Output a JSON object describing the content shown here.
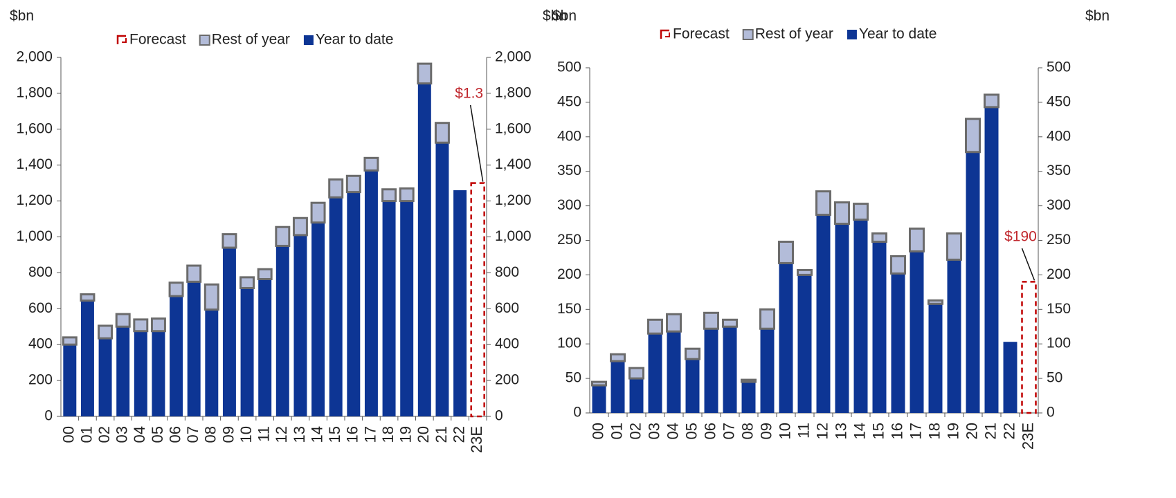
{
  "chart_data": [
    {
      "type": "bar",
      "stacked": true,
      "y_label": "$bn",
      "y2_label": "$bn",
      "categories": [
        "00",
        "01",
        "02",
        "03",
        "04",
        "05",
        "06",
        "07",
        "08",
        "09",
        "10",
        "11",
        "12",
        "13",
        "14",
        "15",
        "16",
        "17",
        "18",
        "19",
        "20",
        "21",
        "22",
        "23E"
      ],
      "series": [
        {
          "name": "Year to date",
          "color": "#0d3594",
          "values": [
            400,
            645,
            435,
            500,
            475,
            475,
            670,
            750,
            595,
            940,
            715,
            765,
            950,
            1010,
            1080,
            1220,
            1250,
            1370,
            1200,
            1200,
            1855,
            1525,
            1260,
            null
          ]
        },
        {
          "name": "Rest of year",
          "color": "#b3bcd9",
          "values": [
            40,
            35,
            70,
            70,
            65,
            70,
            75,
            90,
            140,
            75,
            60,
            55,
            105,
            95,
            110,
            100,
            90,
            70,
            65,
            70,
            110,
            110,
            null,
            null
          ]
        },
        {
          "name": "Forecast",
          "color": "#c00000",
          "style": "dashed",
          "values": [
            null,
            null,
            null,
            null,
            null,
            null,
            null,
            null,
            null,
            null,
            null,
            null,
            null,
            null,
            null,
            null,
            null,
            null,
            null,
            null,
            null,
            null,
            null,
            1300
          ]
        }
      ],
      "legend_order": [
        2,
        1,
        0
      ],
      "annotation": {
        "text": "$1.3",
        "category": "23E"
      },
      "ylim": [
        0,
        2000
      ],
      "yticks": [
        0,
        200,
        400,
        600,
        800,
        {
          "value": 1000,
          "label": "1,000"
        },
        {
          "value": 1200,
          "label": "1,200"
        },
        {
          "value": 1400,
          "label": "1,400"
        },
        {
          "value": 1600,
          "label": "1,600"
        },
        {
          "value": 1800,
          "label": "1,800"
        },
        {
          "value": 2000,
          "label": "2,000"
        }
      ],
      "y2lim": [
        0,
        2000
      ],
      "y2ticks": [
        0,
        200,
        400,
        600,
        800,
        {
          "value": 1000,
          "label": "1,000"
        },
        {
          "value": 1200,
          "label": "1,200"
        },
        {
          "value": 1400,
          "label": "1,400"
        },
        {
          "value": 1600,
          "label": "1,600"
        },
        {
          "value": 1800,
          "label": "1,800"
        },
        {
          "value": 2000,
          "label": "2,000"
        }
      ]
    },
    {
      "type": "bar",
      "stacked": true,
      "y_label": "$bn",
      "y2_label": "$bn",
      "categories": [
        "00",
        "01",
        "02",
        "03",
        "04",
        "05",
        "06",
        "07",
        "08",
        "09",
        "10",
        "11",
        "12",
        "13",
        "14",
        "15",
        "16",
        "17",
        "18",
        "19",
        "20",
        "21",
        "22",
        "23E"
      ],
      "series": [
        {
          "name": "Year to date",
          "color": "#0d3594",
          "values": [
            40,
            75,
            50,
            115,
            118,
            78,
            122,
            125,
            45,
            122,
            217,
            200,
            287,
            274,
            280,
            248,
            202,
            234,
            158,
            222,
            378,
            443,
            103,
            null
          ]
        },
        {
          "name": "Rest of year",
          "color": "#b3bcd9",
          "values": [
            5,
            10,
            15,
            20,
            25,
            15,
            23,
            10,
            3,
            28,
            31,
            7,
            34,
            31,
            23,
            12,
            25,
            33,
            5,
            38,
            48,
            18,
            null,
            null
          ]
        },
        {
          "name": "Forecast",
          "color": "#c00000",
          "style": "dashed",
          "values": [
            null,
            null,
            null,
            null,
            null,
            null,
            null,
            null,
            null,
            null,
            null,
            null,
            null,
            null,
            null,
            null,
            null,
            null,
            null,
            null,
            null,
            null,
            null,
            190
          ]
        }
      ],
      "legend_order": [
        2,
        1,
        0
      ],
      "annotation": {
        "text": "$190",
        "category": "23E"
      },
      "ylim": [
        0,
        500
      ],
      "yticks": [
        0,
        50,
        100,
        150,
        200,
        250,
        300,
        350,
        400,
        450,
        500
      ],
      "y2lim": [
        0,
        500
      ],
      "y2ticks": [
        0,
        50,
        100,
        150,
        200,
        250,
        300,
        350,
        400,
        450,
        500
      ]
    }
  ]
}
